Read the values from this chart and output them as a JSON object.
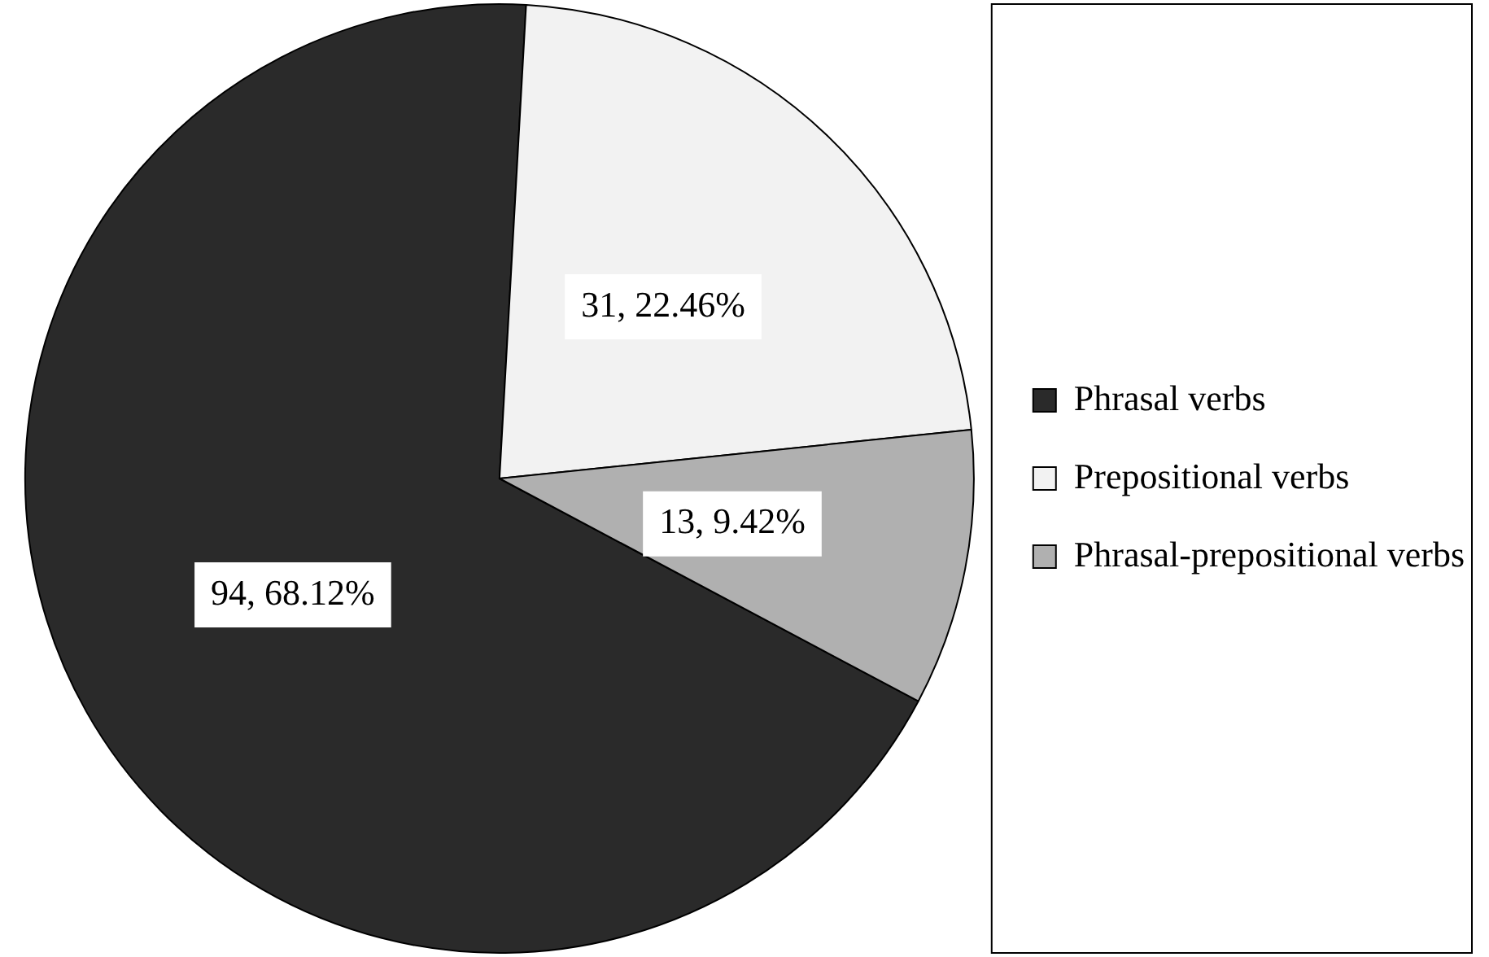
{
  "chart_data": {
    "type": "pie",
    "categories": [
      "Phrasal verbs",
      "Prepositional verbs",
      "Phrasal-prepositional verbs"
    ],
    "values": [
      94,
      31,
      13
    ],
    "colors": [
      "#2a2a2a",
      "#f2f2f2",
      "#b0b0b0"
    ],
    "value_labels": [
      "94, 68.12%",
      "31, 22.46%",
      "13, 9.42%"
    ],
    "legend": "right"
  }
}
